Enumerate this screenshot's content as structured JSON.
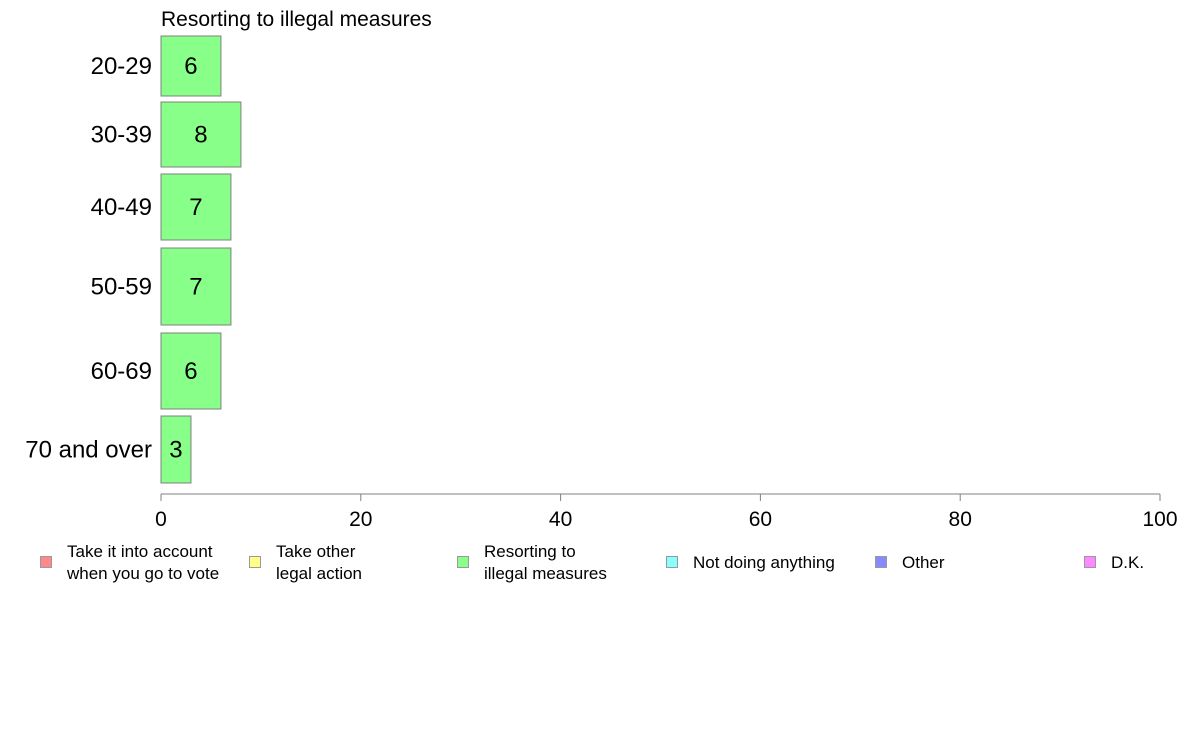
{
  "chart_data": {
    "type": "bar",
    "orientation": "horizontal",
    "title": "Resorting to illegal measures",
    "categories": [
      "20-29",
      "30-39",
      "40-49",
      "50-59",
      "60-69",
      "70 and over"
    ],
    "series": [
      {
        "name": "Resorting to\nillegal measures",
        "values": [
          6,
          8,
          7,
          7,
          6,
          3
        ],
        "color": "#88ff88"
      }
    ],
    "data_labels": [
      "6",
      "8",
      "7",
      "7",
      "6",
      "3"
    ],
    "xlim": [
      0,
      100
    ],
    "xticks": [
      0,
      20,
      40,
      60,
      80,
      100
    ],
    "grid": false,
    "legend_position": "bottom"
  },
  "legend": [
    {
      "label": "Take it into account\nwhen you go to vote",
      "color": "#ff8888"
    },
    {
      "label": "Take other\nlegal action",
      "color": "#ffff88"
    },
    {
      "label": "Resorting to\nillegal measures",
      "color": "#88ff88"
    },
    {
      "label": "Not doing anything",
      "color": "#88ffff"
    },
    {
      "label": "Other",
      "color": "#8888ff"
    },
    {
      "label": "D.K.",
      "color": "#ff88ff"
    }
  ]
}
